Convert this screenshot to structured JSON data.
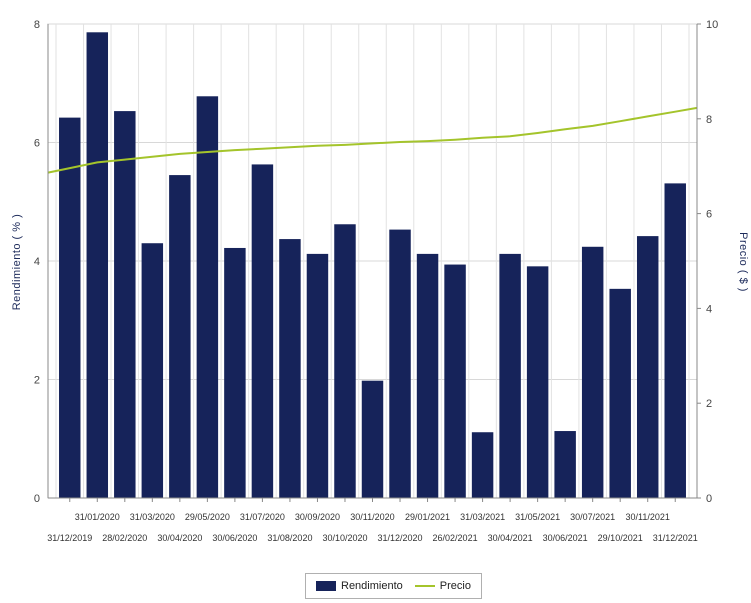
{
  "chart_data": {
    "type": "bar",
    "categories": [
      "31/12/2019",
      "31/01/2020",
      "28/02/2020",
      "31/03/2020",
      "30/04/2020",
      "29/05/2020",
      "30/06/2020",
      "31/07/2020",
      "31/08/2020",
      "30/09/2020",
      "30/10/2020",
      "30/11/2020",
      "31/12/2020",
      "29/01/2021",
      "26/02/2021",
      "31/03/2021",
      "30/04/2021",
      "31/05/2021",
      "30/06/2021",
      "30/07/2021",
      "29/10/2021",
      "30/11/2021",
      "31/12/2021"
    ],
    "series": [
      {
        "name": "Rendimiento",
        "type": "bar",
        "axis": "left",
        "color": "#16235a",
        "values": [
          6.42,
          7.86,
          6.53,
          4.3,
          5.45,
          6.78,
          4.22,
          5.63,
          4.37,
          4.12,
          4.62,
          1.98,
          4.53,
          4.12,
          3.94,
          1.11,
          4.12,
          3.91,
          1.13,
          4.24,
          3.53,
          4.42,
          5.31
        ]
      },
      {
        "name": "Precio",
        "type": "line",
        "axis": "right",
        "color": "#a4c42b",
        "values": [
          6.96,
          7.08,
          7.14,
          7.2,
          7.26,
          7.3,
          7.34,
          7.37,
          7.4,
          7.43,
          7.45,
          7.48,
          7.51,
          7.53,
          7.56,
          7.6,
          7.63,
          7.7,
          7.78,
          7.85,
          7.95,
          8.05,
          8.15
        ]
      }
    ],
    "y_left": {
      "label": "Rendimiento ( % )",
      "range": [
        0,
        8
      ],
      "ticks": [
        0,
        2,
        4,
        6,
        8
      ]
    },
    "y_right": {
      "label": "Precio ( $ )",
      "range": [
        0,
        10
      ],
      "ticks": [
        0,
        2,
        4,
        6,
        8,
        10
      ]
    },
    "grid": true,
    "legend_position": "bottom"
  }
}
